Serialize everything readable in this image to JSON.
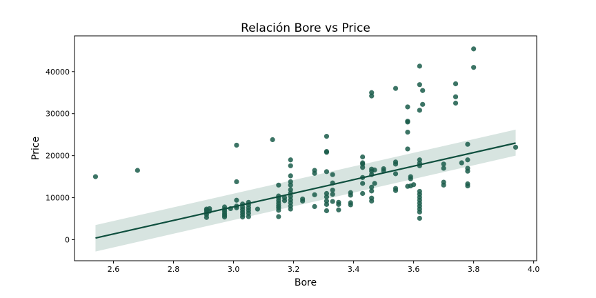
{
  "chart_data": {
    "type": "scatter",
    "title": "Relación Bore vs Price",
    "xlabel": "Bore",
    "ylabel": "Price",
    "xlim": [
      2.47,
      4.01
    ],
    "ylim": [
      -5000,
      48500
    ],
    "xticks": [
      "2.6",
      "2.8",
      "3.0",
      "3.2",
      "3.4",
      "3.6",
      "3.8",
      "4.0"
    ],
    "yticks": [
      "0",
      "10000",
      "20000",
      "30000",
      "40000"
    ],
    "grid": false,
    "colors": {
      "points": "#1a5c4a",
      "line": "#0f4f3e",
      "band": "#b7cec6"
    },
    "regression": {
      "x": [
        2.54,
        3.94
      ],
      "y": [
        400,
        23000
      ],
      "ci_lower": [
        -2800,
        20000
      ],
      "ci_upper": [
        3500,
        26200
      ]
    },
    "points": [
      [
        2.54,
        15000
      ],
      [
        2.68,
        16500
      ],
      [
        2.91,
        7000
      ],
      [
        2.91,
        6500
      ],
      [
        2.91,
        6000
      ],
      [
        2.91,
        5300
      ],
      [
        2.91,
        7300
      ],
      [
        2.92,
        6800
      ],
      [
        2.92,
        7400
      ],
      [
        2.97,
        7800
      ],
      [
        2.97,
        7200
      ],
      [
        2.97,
        6700
      ],
      [
        2.97,
        6200
      ],
      [
        2.97,
        5800
      ],
      [
        2.97,
        5400
      ],
      [
        2.99,
        7400
      ],
      [
        3.01,
        8000
      ],
      [
        3.01,
        7600
      ],
      [
        3.01,
        9400
      ],
      [
        3.01,
        13800
      ],
      [
        3.01,
        22500
      ],
      [
        3.03,
        8500
      ],
      [
        3.03,
        7800
      ],
      [
        3.03,
        7200
      ],
      [
        3.03,
        6600
      ],
      [
        3.03,
        6000
      ],
      [
        3.03,
        5400
      ],
      [
        3.05,
        8900
      ],
      [
        3.05,
        8300
      ],
      [
        3.05,
        7600
      ],
      [
        3.05,
        7000
      ],
      [
        3.05,
        6300
      ],
      [
        3.05,
        5500
      ],
      [
        3.08,
        7300
      ],
      [
        3.13,
        23800
      ],
      [
        3.15,
        13000
      ],
      [
        3.15,
        10400
      ],
      [
        3.15,
        9900
      ],
      [
        3.15,
        9300
      ],
      [
        3.15,
        8700
      ],
      [
        3.15,
        8100
      ],
      [
        3.15,
        7600
      ],
      [
        3.15,
        7000
      ],
      [
        3.15,
        5500
      ],
      [
        3.17,
        10000
      ],
      [
        3.17,
        9300
      ],
      [
        3.19,
        19000
      ],
      [
        3.19,
        17600
      ],
      [
        3.19,
        15200
      ],
      [
        3.19,
        13800
      ],
      [
        3.19,
        13000
      ],
      [
        3.19,
        11900
      ],
      [
        3.19,
        11100
      ],
      [
        3.19,
        10300
      ],
      [
        3.19,
        9500
      ],
      [
        3.19,
        8800
      ],
      [
        3.19,
        8000
      ],
      [
        3.19,
        7300
      ],
      [
        3.23,
        9200
      ],
      [
        3.23,
        9700
      ],
      [
        3.27,
        16500
      ],
      [
        3.27,
        15800
      ],
      [
        3.27,
        10700
      ],
      [
        3.27,
        7900
      ],
      [
        3.31,
        24600
      ],
      [
        3.31,
        21000
      ],
      [
        3.31,
        20800
      ],
      [
        3.31,
        16200
      ],
      [
        3.31,
        11000
      ],
      [
        3.31,
        10200
      ],
      [
        3.31,
        9200
      ],
      [
        3.31,
        8400
      ],
      [
        3.31,
        6900
      ],
      [
        3.33,
        15500
      ],
      [
        3.33,
        13500
      ],
      [
        3.33,
        11800
      ],
      [
        3.33,
        10800
      ],
      [
        3.33,
        9100
      ],
      [
        3.35,
        8900
      ],
      [
        3.35,
        8400
      ],
      [
        3.35,
        7100
      ],
      [
        3.39,
        11200
      ],
      [
        3.39,
        10600
      ],
      [
        3.39,
        8800
      ],
      [
        3.39,
        8300
      ],
      [
        3.43,
        19700
      ],
      [
        3.43,
        18300
      ],
      [
        3.43,
        18000
      ],
      [
        3.43,
        17200
      ],
      [
        3.43,
        14800
      ],
      [
        3.43,
        13400
      ],
      [
        3.43,
        11000
      ],
      [
        3.46,
        35000
      ],
      [
        3.46,
        34200
      ],
      [
        3.46,
        16800
      ],
      [
        3.46,
        16300
      ],
      [
        3.46,
        15500
      ],
      [
        3.46,
        12500
      ],
      [
        3.46,
        11600
      ],
      [
        3.46,
        9900
      ],
      [
        3.46,
        9200
      ],
      [
        3.47,
        16600
      ],
      [
        3.47,
        13400
      ],
      [
        3.5,
        16900
      ],
      [
        3.5,
        16400
      ],
      [
        3.54,
        36000
      ],
      [
        3.54,
        18500
      ],
      [
        3.54,
        18000
      ],
      [
        3.54,
        15700
      ],
      [
        3.54,
        12200
      ],
      [
        3.54,
        11700
      ],
      [
        3.58,
        31600
      ],
      [
        3.58,
        28200
      ],
      [
        3.58,
        28000
      ],
      [
        3.58,
        25600
      ],
      [
        3.58,
        21600
      ],
      [
        3.58,
        12700
      ],
      [
        3.59,
        15000
      ],
      [
        3.59,
        14500
      ],
      [
        3.59,
        12800
      ],
      [
        3.6,
        13100
      ],
      [
        3.62,
        41300
      ],
      [
        3.62,
        36900
      ],
      [
        3.62,
        30800
      ],
      [
        3.62,
        19000
      ],
      [
        3.62,
        18200
      ],
      [
        3.62,
        17600
      ],
      [
        3.62,
        11500
      ],
      [
        3.62,
        10800
      ],
      [
        3.62,
        10100
      ],
      [
        3.62,
        9400
      ],
      [
        3.62,
        8700
      ],
      [
        3.62,
        8000
      ],
      [
        3.62,
        7300
      ],
      [
        3.62,
        6600
      ],
      [
        3.62,
        5100
      ],
      [
        3.63,
        35500
      ],
      [
        3.63,
        32200
      ],
      [
        3.7,
        18000
      ],
      [
        3.7,
        17000
      ],
      [
        3.7,
        13700
      ],
      [
        3.7,
        13000
      ],
      [
        3.74,
        37100
      ],
      [
        3.74,
        34000
      ],
      [
        3.74,
        32500
      ],
      [
        3.76,
        18300
      ],
      [
        3.78,
        22700
      ],
      [
        3.78,
        19000
      ],
      [
        3.78,
        17000
      ],
      [
        3.78,
        16300
      ],
      [
        3.78,
        13300
      ],
      [
        3.78,
        12800
      ],
      [
        3.8,
        45400
      ],
      [
        3.8,
        41000
      ],
      [
        3.94,
        22000
      ]
    ]
  }
}
